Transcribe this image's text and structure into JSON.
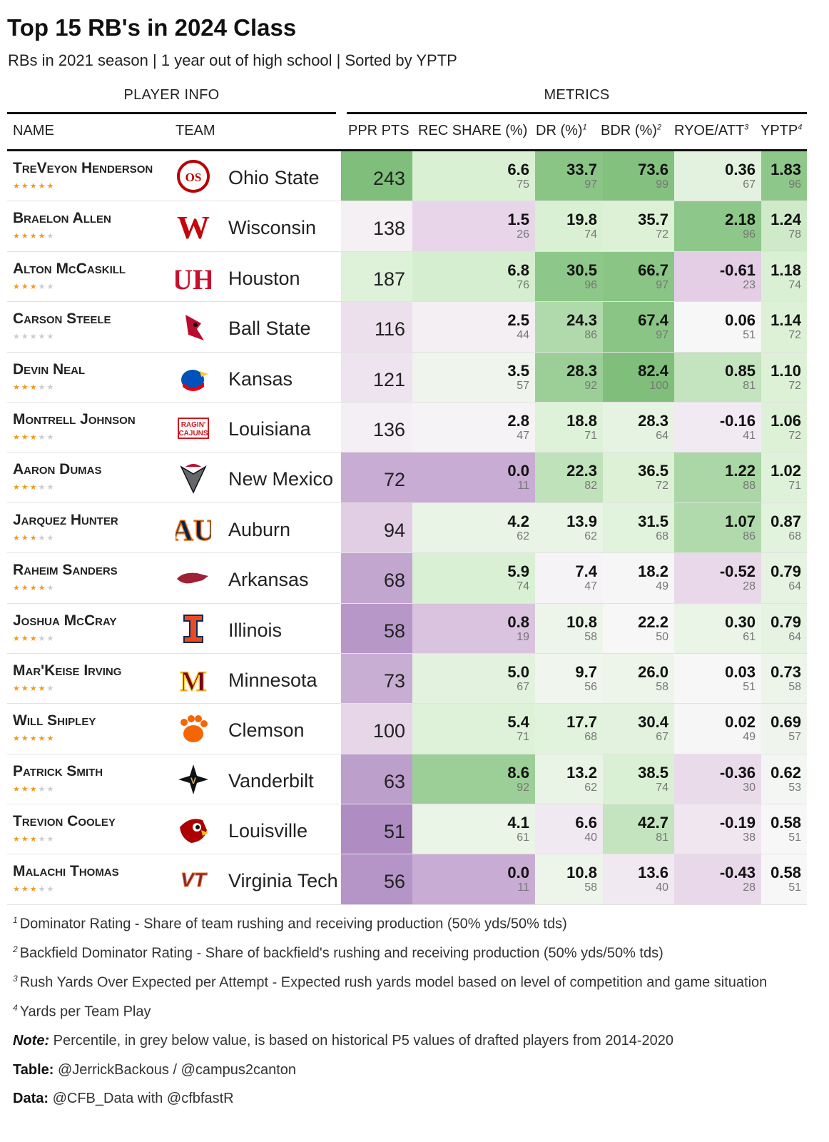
{
  "title": "Top 15 RB's in 2024 Class",
  "subtitle": "RBs in 2021 season | 1 year out of high school | Sorted by YPTP",
  "spanners": {
    "player_info": "PLAYER INFO",
    "metrics": "METRICS"
  },
  "columns": {
    "name": "NAME",
    "team": "TEAM",
    "ppr": "PPR PTS",
    "rec": "REC SHARE (%)",
    "dr": "DR (%)",
    "dr_sup": "1",
    "bdr": "BDR (%)",
    "bdr_sup": "2",
    "ryoe": "RYOE/ATT",
    "ryoe_sup": "3",
    "yptp": "YPTP",
    "yptp_sup": "4"
  },
  "colors": {
    "green_dark": "#7fbf7b",
    "green_light": "#d9f0d3",
    "neutral": "#f7f7f7",
    "purple_light": "#e7d4e8",
    "purple_dark": "#af8dc3",
    "star_on": "#f29a1f",
    "star_off": "#cccccc"
  },
  "chart_data": {
    "type": "table",
    "rows": [
      {
        "name": "TreVeyon Henderson",
        "stars": 5,
        "team": "Ohio State",
        "logo": "ohio-state-logo",
        "ppr": 243,
        "rec": "6.6",
        "rec_pct": 75,
        "dr": "33.7",
        "dr_pct": 97,
        "bdr": "73.6",
        "bdr_pct": 99,
        "ryoe": "0.36",
        "ryoe_pct": 67,
        "yptp": "1.83",
        "yptp_pct": 96
      },
      {
        "name": "Braelon Allen",
        "stars": 4,
        "team": "Wisconsin",
        "logo": "wisconsin-logo",
        "ppr": 138,
        "rec": "1.5",
        "rec_pct": 26,
        "dr": "19.8",
        "dr_pct": 74,
        "bdr": "35.7",
        "bdr_pct": 72,
        "ryoe": "2.18",
        "ryoe_pct": 96,
        "yptp": "1.24",
        "yptp_pct": 78
      },
      {
        "name": "Alton McCaskill",
        "stars": 3,
        "team": "Houston",
        "logo": "houston-logo",
        "ppr": 187,
        "rec": "6.8",
        "rec_pct": 76,
        "dr": "30.5",
        "dr_pct": 96,
        "bdr": "66.7",
        "bdr_pct": 97,
        "ryoe": "-0.61",
        "ryoe_pct": 23,
        "yptp": "1.18",
        "yptp_pct": 74
      },
      {
        "name": "Carson Steele",
        "stars": 0,
        "team": "Ball State",
        "logo": "ball-state-logo",
        "ppr": 116,
        "rec": "2.5",
        "rec_pct": 44,
        "dr": "24.3",
        "dr_pct": 86,
        "bdr": "67.4",
        "bdr_pct": 97,
        "ryoe": "0.06",
        "ryoe_pct": 51,
        "yptp": "1.14",
        "yptp_pct": 72
      },
      {
        "name": "Devin Neal",
        "stars": 3,
        "team": "Kansas",
        "logo": "kansas-logo",
        "ppr": 121,
        "rec": "3.5",
        "rec_pct": 57,
        "dr": "28.3",
        "dr_pct": 92,
        "bdr": "82.4",
        "bdr_pct": 100,
        "ryoe": "0.85",
        "ryoe_pct": 81,
        "yptp": "1.10",
        "yptp_pct": 72
      },
      {
        "name": "Montrell Johnson",
        "stars": 3,
        "team": "Louisiana",
        "logo": "louisiana-logo",
        "ppr": 136,
        "rec": "2.8",
        "rec_pct": 47,
        "dr": "18.8",
        "dr_pct": 71,
        "bdr": "28.3",
        "bdr_pct": 64,
        "ryoe": "-0.16",
        "ryoe_pct": 41,
        "yptp": "1.06",
        "yptp_pct": 72
      },
      {
        "name": "Aaron Dumas",
        "stars": 3,
        "team": "New Mexico",
        "logo": "new-mexico-logo",
        "ppr": 72,
        "rec": "0.0",
        "rec_pct": 11,
        "dr": "22.3",
        "dr_pct": 82,
        "bdr": "36.5",
        "bdr_pct": 72,
        "ryoe": "1.22",
        "ryoe_pct": 88,
        "yptp": "1.02",
        "yptp_pct": 71
      },
      {
        "name": "Jarquez Hunter",
        "stars": 3,
        "team": "Auburn",
        "logo": "auburn-logo",
        "ppr": 94,
        "rec": "4.2",
        "rec_pct": 62,
        "dr": "13.9",
        "dr_pct": 62,
        "bdr": "31.5",
        "bdr_pct": 68,
        "ryoe": "1.07",
        "ryoe_pct": 86,
        "yptp": "0.87",
        "yptp_pct": 68
      },
      {
        "name": "Raheim Sanders",
        "stars": 4,
        "team": "Arkansas",
        "logo": "arkansas-logo",
        "ppr": 68,
        "rec": "5.9",
        "rec_pct": 74,
        "dr": "7.4",
        "dr_pct": 47,
        "bdr": "18.2",
        "bdr_pct": 49,
        "ryoe": "-0.52",
        "ryoe_pct": 28,
        "yptp": "0.79",
        "yptp_pct": 64
      },
      {
        "name": "Joshua McCray",
        "stars": 3,
        "team": "Illinois",
        "logo": "illinois-logo",
        "ppr": 58,
        "rec": "0.8",
        "rec_pct": 19,
        "dr": "10.8",
        "dr_pct": 58,
        "bdr": "22.2",
        "bdr_pct": 50,
        "ryoe": "0.30",
        "ryoe_pct": 61,
        "yptp": "0.79",
        "yptp_pct": 64
      },
      {
        "name": "Mar'Keise Irving",
        "stars": 4,
        "team": "Minnesota",
        "logo": "minnesota-logo",
        "ppr": 73,
        "rec": "5.0",
        "rec_pct": 67,
        "dr": "9.7",
        "dr_pct": 56,
        "bdr": "26.0",
        "bdr_pct": 58,
        "ryoe": "0.03",
        "ryoe_pct": 51,
        "yptp": "0.73",
        "yptp_pct": 58
      },
      {
        "name": "Will Shipley",
        "stars": 5,
        "team": "Clemson",
        "logo": "clemson-logo",
        "ppr": 100,
        "rec": "5.4",
        "rec_pct": 71,
        "dr": "17.7",
        "dr_pct": 68,
        "bdr": "30.4",
        "bdr_pct": 67,
        "ryoe": "0.02",
        "ryoe_pct": 49,
        "yptp": "0.69",
        "yptp_pct": 57
      },
      {
        "name": "Patrick Smith",
        "stars": 3,
        "team": "Vanderbilt",
        "logo": "vanderbilt-logo",
        "ppr": 63,
        "rec": "8.6",
        "rec_pct": 92,
        "dr": "13.2",
        "dr_pct": 62,
        "bdr": "38.5",
        "bdr_pct": 74,
        "ryoe": "-0.36",
        "ryoe_pct": 30,
        "yptp": "0.62",
        "yptp_pct": 53
      },
      {
        "name": "Trevion Cooley",
        "stars": 3,
        "team": "Louisville",
        "logo": "louisville-logo",
        "ppr": 51,
        "rec": "4.1",
        "rec_pct": 61,
        "dr": "6.6",
        "dr_pct": 40,
        "bdr": "42.7",
        "bdr_pct": 81,
        "ryoe": "-0.19",
        "ryoe_pct": 38,
        "yptp": "0.58",
        "yptp_pct": 51
      },
      {
        "name": "Malachi Thomas",
        "stars": 3,
        "team": "Virginia Tech",
        "logo": "virginia-tech-logo",
        "ppr": 56,
        "rec": "0.0",
        "rec_pct": 11,
        "dr": "10.8",
        "dr_pct": 58,
        "bdr": "13.6",
        "bdr_pct": 40,
        "ryoe": "-0.43",
        "ryoe_pct": 28,
        "yptp": "0.58",
        "yptp_pct": 51
      }
    ]
  },
  "footnotes": {
    "fn1_mark": "1",
    "fn1": "Dominator Rating - Share of team rushing and receiving production (50% yds/50% tds)",
    "fn2_mark": "2",
    "fn2": "Backfield Dominator Rating - Share of backfield's rushing and receiving production (50% yds/50% tds)",
    "fn3_mark": "3",
    "fn3": "Rush Yards Over Expected per Attempt - Expected rush yards model based on level of competition and game situation",
    "fn4_mark": "4",
    "fn4": "Yards per Team Play",
    "note_label": "Note:",
    "note": "Percentile, in grey below value, is based on historical P5 values of drafted players from 2014-2020",
    "table_label": "Table:",
    "table": "@JerrickBackous / @campus2canton",
    "data_label": "Data:",
    "data": "@CFB_Data with @cfbfastR"
  }
}
